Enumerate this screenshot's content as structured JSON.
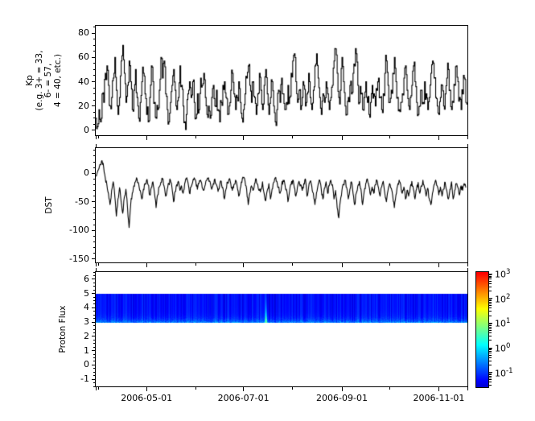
{
  "figure": {
    "background": "#ffffff",
    "frame_color": "#000000",
    "line_color": "#000000"
  },
  "x_axis": {
    "range_days": 234,
    "major_ticks": [
      {
        "day": 32,
        "label": "2006-05-01"
      },
      {
        "day": 93,
        "label": "2006-07-01"
      },
      {
        "day": 155,
        "label": "2006-09-01"
      },
      {
        "day": 216,
        "label": "2006-11-01"
      }
    ],
    "minor_tick_days": [
      2,
      63,
      124,
      185
    ],
    "edge_tick_days": [
      0,
      234
    ]
  },
  "chart_data": [
    {
      "type": "line",
      "style": "steps",
      "ylabel": "Kp\n(e.g. 3+ = 33,\n6- = 57,\n4 = 40, etc.)",
      "ylim": [
        -4,
        86
      ],
      "yticks": [
        0,
        20,
        40,
        60,
        80
      ],
      "y_minor_step": 5,
      "line_color": "#000000",
      "noise_amp": 20,
      "noise_seed": 11,
      "x_unit": "days",
      "values": [
        10,
        3,
        17,
        7,
        30,
        23,
        47,
        53,
        37,
        20,
        27,
        43,
        60,
        33,
        13,
        27,
        57,
        70,
        47,
        23,
        37,
        57,
        40,
        17,
        33,
        50,
        27,
        10,
        23,
        40,
        47,
        30,
        13,
        7,
        27,
        53,
        40,
        23,
        10,
        17,
        33,
        60,
        43,
        57,
        30,
        17,
        7,
        23,
        37,
        50,
        33,
        17,
        27,
        53,
        37,
        20,
        7,
        13,
        30,
        40,
        27,
        40,
        23,
        10,
        30,
        17,
        43,
        37,
        47,
        27,
        13,
        20,
        10,
        27,
        37,
        20,
        33,
        17,
        7,
        23,
        37,
        40,
        27,
        13,
        20,
        33,
        47,
        30,
        17,
        27,
        40,
        23,
        10,
        17,
        30,
        43,
        53,
        37,
        23,
        40,
        27,
        13,
        30,
        47,
        33,
        17,
        37,
        50,
        30,
        13,
        27,
        40,
        20,
        7,
        17,
        33,
        23,
        43,
        30,
        17,
        23,
        37,
        27,
        47,
        57,
        63,
        40,
        23,
        33,
        17,
        27,
        37,
        20,
        30,
        47,
        27,
        17,
        33,
        53,
        63,
        43,
        27,
        13,
        30,
        23,
        40,
        30,
        17,
        27,
        37,
        57,
        67,
        47,
        27,
        33,
        60,
        40,
        20,
        13,
        27,
        37,
        30,
        47,
        53,
        63,
        37,
        23,
        30,
        17,
        27,
        40,
        23,
        13,
        23,
        37,
        30,
        20,
        33,
        43,
        27,
        17,
        30,
        47,
        57,
        37,
        23,
        33,
        47,
        60,
        40,
        27,
        17,
        23,
        30,
        43,
        53,
        33,
        20,
        27,
        37,
        53,
        40,
        23,
        13,
        20,
        33,
        23,
        40,
        30,
        17,
        27,
        47,
        57,
        43,
        27,
        20,
        13,
        27,
        37,
        20,
        30,
        43,
        50,
        33,
        17,
        23,
        37,
        53,
        40,
        27,
        17,
        30,
        43,
        23
      ]
    },
    {
      "type": "line",
      "style": "line",
      "ylabel": "DST",
      "ylim": [
        -156,
        44
      ],
      "yticks": [
        0,
        -50,
        -100,
        -150
      ],
      "y_minor_step": 10,
      "line_color": "#000000",
      "noise_amp": 9,
      "noise_seed": 23,
      "x_unit": "days",
      "values": [
        -5,
        2,
        8,
        15,
        22,
        10,
        -8,
        -20,
        -35,
        -55,
        -30,
        -15,
        -40,
        -75,
        -45,
        -25,
        -50,
        -70,
        -42,
        -28,
        -60,
        -95,
        -55,
        -35,
        -22,
        -15,
        -10,
        -18,
        -30,
        -45,
        -28,
        -18,
        -12,
        -20,
        -38,
        -25,
        -15,
        -35,
        -60,
        -38,
        -24,
        -16,
        -10,
        -22,
        -40,
        -28,
        -18,
        -12,
        -25,
        -50,
        -32,
        -20,
        -14,
        -30,
        -22,
        -35,
        -18,
        -10,
        -15,
        -35,
        -24,
        -16,
        -8,
        -14,
        -28,
        -18,
        -12,
        -25,
        -30,
        -20,
        -12,
        -8,
        -15,
        -28,
        -18,
        -10,
        -20,
        -32,
        -22,
        -14,
        -25,
        -45,
        -28,
        -16,
        -10,
        -18,
        -30,
        -20,
        -12,
        -22,
        -40,
        -26,
        -16,
        -8,
        -14,
        -28,
        -55,
        -35,
        -22,
        -30,
        -18,
        -10,
        -20,
        -30,
        -28,
        -15,
        -35,
        -48,
        -30,
        -18,
        -45,
        -28,
        -16,
        -8,
        -14,
        -24,
        -35,
        -22,
        -12,
        -18,
        -28,
        -50,
        -32,
        -20,
        -12,
        -25,
        -40,
        -24,
        -14,
        -20,
        -30,
        -18,
        -10,
        -40,
        -25,
        -14,
        -22,
        -35,
        -55,
        -34,
        -20,
        -12,
        -28,
        -45,
        -26,
        -15,
        -35,
        -22,
        -12,
        -20,
        -45,
        -30,
        -60,
        -78,
        -48,
        -30,
        -20,
        -12,
        -25,
        -45,
        -28,
        -15,
        -35,
        -55,
        -35,
        -22,
        -14,
        -28,
        -55,
        -32,
        -18,
        -10,
        -22,
        -38,
        -24,
        -35,
        -20,
        -12,
        -25,
        -40,
        -24,
        -14,
        -35,
        -50,
        -30,
        -18,
        -26,
        -40,
        -60,
        -38,
        -22,
        -12,
        -20,
        -35,
        -24,
        -45,
        -30,
        -40,
        -25,
        -14,
        -28,
        -45,
        -28,
        -16,
        -35,
        -22,
        -12,
        -25,
        -40,
        -26,
        -45,
        -55,
        -35,
        -20,
        -12,
        -22,
        -38,
        -24,
        -40,
        -28,
        -16,
        -30,
        -45,
        -28,
        -15,
        -45,
        -30,
        -18,
        -25,
        -38,
        -22,
        -30,
        -18,
        -25
      ]
    },
    {
      "type": "heatmap",
      "ylabel": "Proton Flux",
      "ylim": [
        -1.5,
        6.5
      ],
      "yticks": [
        6,
        5,
        4,
        3,
        2,
        1,
        0,
        -1
      ],
      "y_minor_step": 0.25,
      "colormap": "jet",
      "band": {
        "y_range": [
          3,
          5
        ],
        "base_log_flux": -1.28,
        "bottom_edge_log_flux": -0.6,
        "column_noise_amp": 0.22,
        "noise_seed": 7,
        "event": {
          "day": 107,
          "sigma_days": 0.4,
          "peak_log_flux": 0.9,
          "y_decay": 0.85
        },
        "post_event_dip": {
          "start_day": 107.3,
          "depth": 0.3,
          "decay_days": 4.5
        }
      },
      "colorbar": {
        "tick_exponents": [
          3,
          2,
          1,
          0,
          -1
        ],
        "tick_base": "10",
        "value_range_log": [
          -1.6,
          3.07
        ]
      }
    }
  ]
}
